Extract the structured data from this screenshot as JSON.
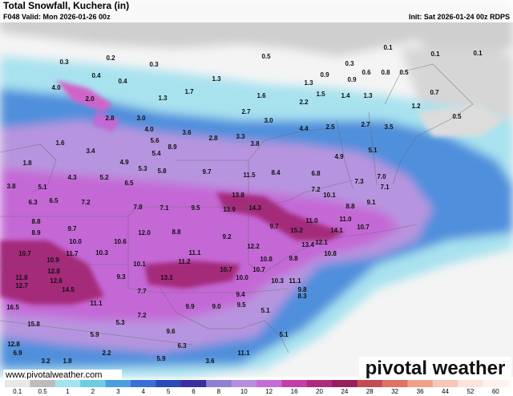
{
  "header": {
    "title": "Total Snowfall, Kuchera (in)",
    "valid": "F048 Valid: Mon 2026-01-26 00z",
    "init": "Init: Sat 2026-01-24 00z RDPS"
  },
  "map": {
    "labels": [
      "0.3",
      "0.2",
      "0.3",
      "0.5",
      "0.3",
      "0.1",
      "0.1",
      "0.1",
      "0.4",
      "0.4",
      "1.3",
      "0.9",
      "0.9",
      "0.6",
      "0.8",
      "0.5",
      "1.3",
      "4.0",
      "1.7",
      "1.6",
      "1.5",
      "1.4",
      "1.3",
      "0.7",
      "2.0",
      "1.3",
      "2.2",
      "1.2",
      "2.8",
      "3.0",
      "2.7",
      "3.0",
      "0.5",
      "4.0",
      "3.6",
      "4.4",
      "2.5",
      "2.7",
      "3.5",
      "1.6",
      "5.6",
      "8.9",
      "2.8",
      "3.3",
      "3.8",
      "3.4",
      "5.4",
      "5.1",
      "1.8",
      "4.9",
      "5.3",
      "5.8",
      "9.7",
      "11.5",
      "8.4",
      "6.8",
      "4.9",
      "7.0",
      "3.8",
      "5.1",
      "4.3",
      "5.2",
      "6.5",
      "7.3",
      "7.1",
      "6.3",
      "6.5",
      "7.2",
      "13.8",
      "7.2",
      "10.1",
      "9.1",
      "7.8",
      "7.1",
      "9.5",
      "13.9",
      "14.3",
      "8.8",
      "11.0",
      "11.0",
      "8.8",
      "9.7",
      "8.8",
      "9.7",
      "15.2",
      "14.1",
      "10.7",
      "8.9",
      "12.0",
      "9.2",
      "12.2",
      "10.0",
      "10.6",
      "13.4",
      "12.1",
      "10.7",
      "11.7",
      "10.3",
      "11.1",
      "10.8",
      "10.9",
      "11.2",
      "10.8",
      "9.8",
      "10.1",
      "10.7",
      "10.7",
      "12.8",
      "9.3",
      "10.0",
      "11.8",
      "12.6",
      "13.1",
      "10.3",
      "11.1",
      "12.7",
      "14.5",
      "9.8",
      "7.7",
      "9.4",
      "8.3",
      "9.5",
      "11.1",
      "9.9",
      "9.0",
      "16.5",
      "7.2",
      "5.1",
      "9.6",
      "5.3",
      "15.8",
      "5.1",
      "5.9",
      "6.3",
      "12.8",
      "6.9",
      "3.2",
      "1.8",
      "2.2",
      "5.9",
      "3.6",
      "11.1"
    ]
  },
  "colorbar": {
    "ticks": [
      0.1,
      0.5,
      1,
      2,
      3,
      4,
      5,
      6,
      8,
      10,
      12,
      16,
      20,
      24,
      28,
      32,
      36,
      44,
      52,
      60
    ],
    "colors": [
      "#e8e8e8",
      "#bcbcbc",
      "#a2e4f0",
      "#6ccde3",
      "#4a9ee0",
      "#3a6fd6",
      "#2b4ab8",
      "#3a2f9e",
      "#8e7fd4",
      "#b68ee0",
      "#c56cd8",
      "#c43ea8",
      "#b02a7c",
      "#96205c",
      "#c64a54",
      "#e07262",
      "#f0a08a",
      "#f6c6b6",
      "#fbe2da",
      "#fff2ee"
    ]
  },
  "footer": {
    "url": "www.pivotalweather.com",
    "logo": "pivotal weather"
  }
}
